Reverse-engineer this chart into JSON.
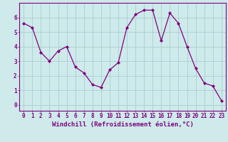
{
  "x": [
    0,
    1,
    2,
    3,
    4,
    5,
    6,
    7,
    8,
    9,
    10,
    11,
    12,
    13,
    14,
    15,
    16,
    17,
    18,
    19,
    20,
    21,
    22,
    23
  ],
  "y": [
    5.6,
    5.3,
    3.6,
    3.0,
    3.7,
    4.0,
    2.6,
    2.2,
    1.4,
    1.2,
    2.4,
    2.9,
    5.3,
    6.2,
    6.5,
    6.5,
    4.4,
    6.3,
    5.6,
    4.0,
    2.5,
    1.5,
    1.3,
    0.3
  ],
  "line_color": "#800080",
  "marker": "D",
  "marker_size": 2.0,
  "bg_color": "#ceeaea",
  "grid_color": "#aacfcf",
  "xlabel": "Windchill (Refroidissement éolien,°C)",
  "ylim": [
    -0.4,
    7.0
  ],
  "xlim": [
    -0.5,
    23.5
  ],
  "xticks": [
    0,
    1,
    2,
    3,
    4,
    5,
    6,
    7,
    8,
    9,
    10,
    11,
    12,
    13,
    14,
    15,
    16,
    17,
    18,
    19,
    20,
    21,
    22,
    23
  ],
  "yticks": [
    0,
    1,
    2,
    3,
    4,
    5,
    6
  ],
  "tick_fontsize": 5.5,
  "xlabel_fontsize": 6.5,
  "line_color_spine": "#800080",
  "tick_color": "#800080"
}
